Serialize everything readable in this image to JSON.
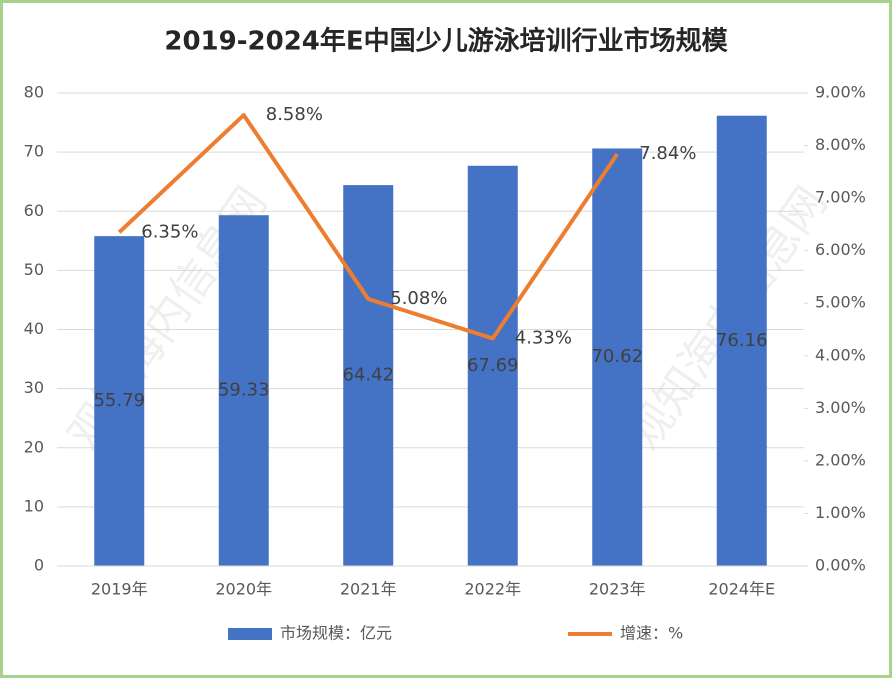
{
  "chart_data": {
    "type": "bar",
    "title": "2019-2024年E中国少儿游泳培训行业市场规模",
    "watermark": "观知海内信息网",
    "categories": [
      "2019年",
      "2020年",
      "2021年",
      "2022年",
      "2023年",
      "2024年E"
    ],
    "series": [
      {
        "name": "市场规模：亿元",
        "type": "bar",
        "color": "#4472c4",
        "values": [
          55.79,
          59.33,
          64.42,
          67.69,
          70.62,
          76.16
        ]
      },
      {
        "name": "增速：%",
        "type": "line",
        "axis": "y2",
        "color": "#ed7d31",
        "values": [
          6.35,
          8.58,
          5.08,
          4.33,
          7.84,
          null
        ],
        "value_labels": [
          "6.35%",
          "8.58%",
          "5.08%",
          "4.33%",
          "7.84%",
          null
        ]
      }
    ],
    "ylim": [
      0,
      80
    ],
    "yticks": [
      0,
      10,
      20,
      30,
      40,
      50,
      60,
      70,
      80
    ],
    "y2lim": [
      0,
      9
    ],
    "y2ticks": [
      {
        "value": 0,
        "label": "0.00%"
      },
      {
        "value": 1,
        "label": "1.00%"
      },
      {
        "value": 2,
        "label": "2.00%"
      },
      {
        "value": 3,
        "label": "3.00%"
      },
      {
        "value": 4,
        "label": "4.00%"
      },
      {
        "value": 5,
        "label": "5.00%"
      },
      {
        "value": 6,
        "label": "6.00%"
      },
      {
        "value": 7,
        "label": "7.00%"
      },
      {
        "value": 8,
        "label": "8.00%"
      },
      {
        "value": 9,
        "label": "9.00%"
      }
    ],
    "grid": true,
    "legend": "bottom"
  }
}
